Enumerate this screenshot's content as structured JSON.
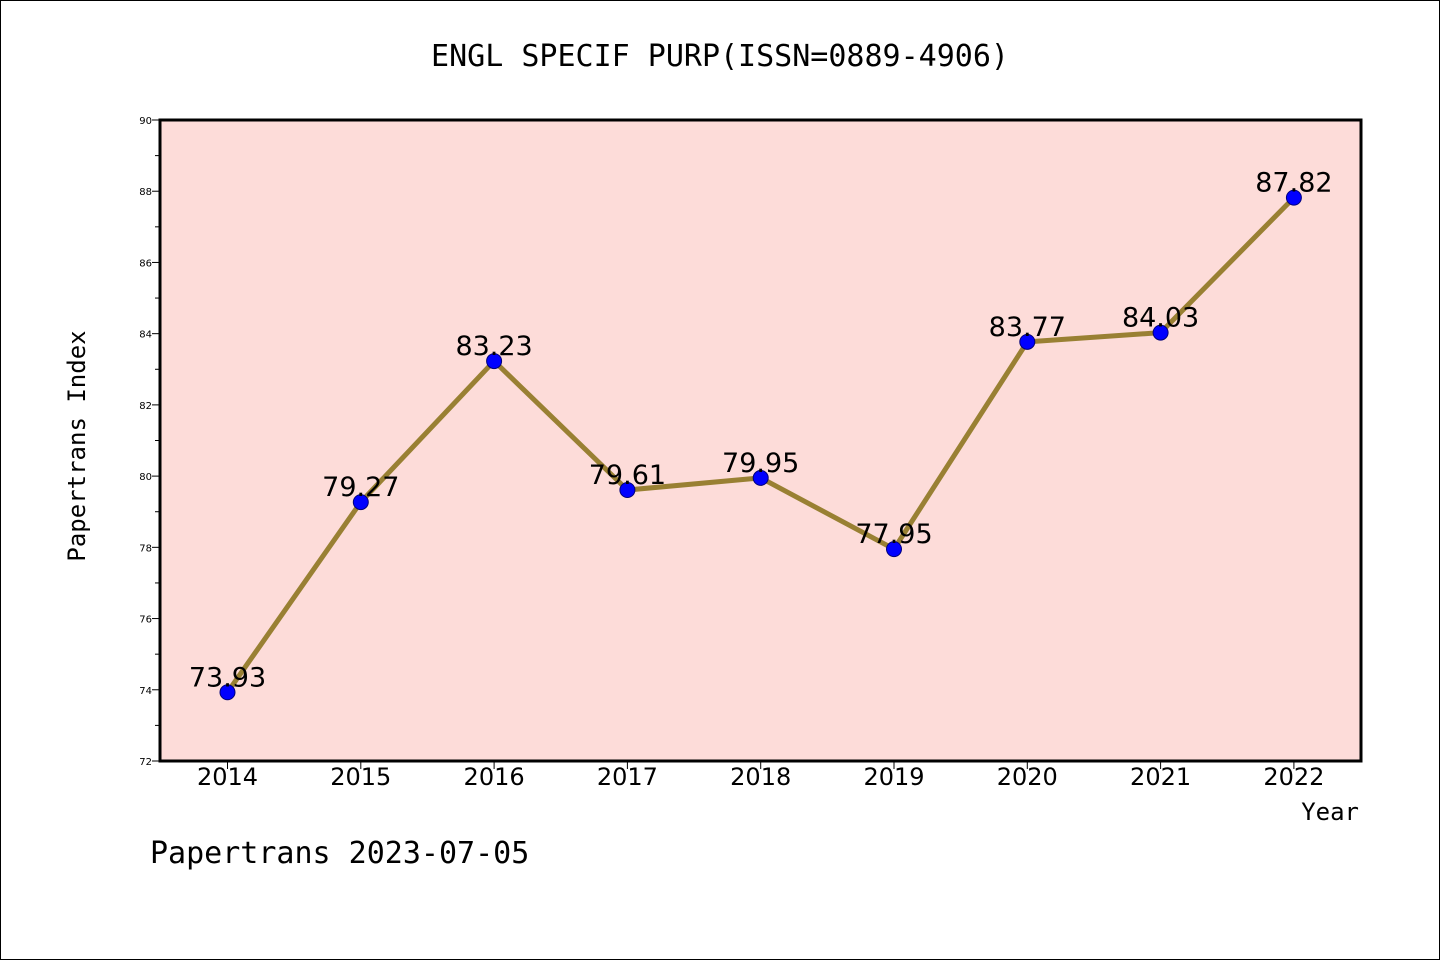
{
  "footer_text": "Papertrans 2023-07-05",
  "colors": {
    "plot_background": "#fddcd9",
    "line": "#998033",
    "marker": "#0000ff",
    "marker_edge": "#00007a"
  },
  "chart_data": {
    "type": "line",
    "title": "ENGL SPECIF PURP(ISSN=0889-4906)",
    "xlabel": "Year",
    "ylabel": "Papertrans Index",
    "ylim": [
      72,
      90
    ],
    "yticks": [
      72,
      74,
      76,
      78,
      80,
      82,
      84,
      86,
      88,
      90
    ],
    "grid": false,
    "categories": [
      "2014",
      "2015",
      "2016",
      "2017",
      "2018",
      "2019",
      "2020",
      "2021",
      "2022"
    ],
    "series": [
      {
        "values": [
          73.93,
          79.27,
          83.23,
          79.61,
          79.95,
          77.95,
          83.77,
          84.03,
          87.82
        ],
        "labels": [
          "73.93",
          "79.27",
          "83.23",
          "79.61",
          "79.95",
          "77.95",
          "83.77",
          "84.03",
          "87.82"
        ]
      }
    ]
  }
}
